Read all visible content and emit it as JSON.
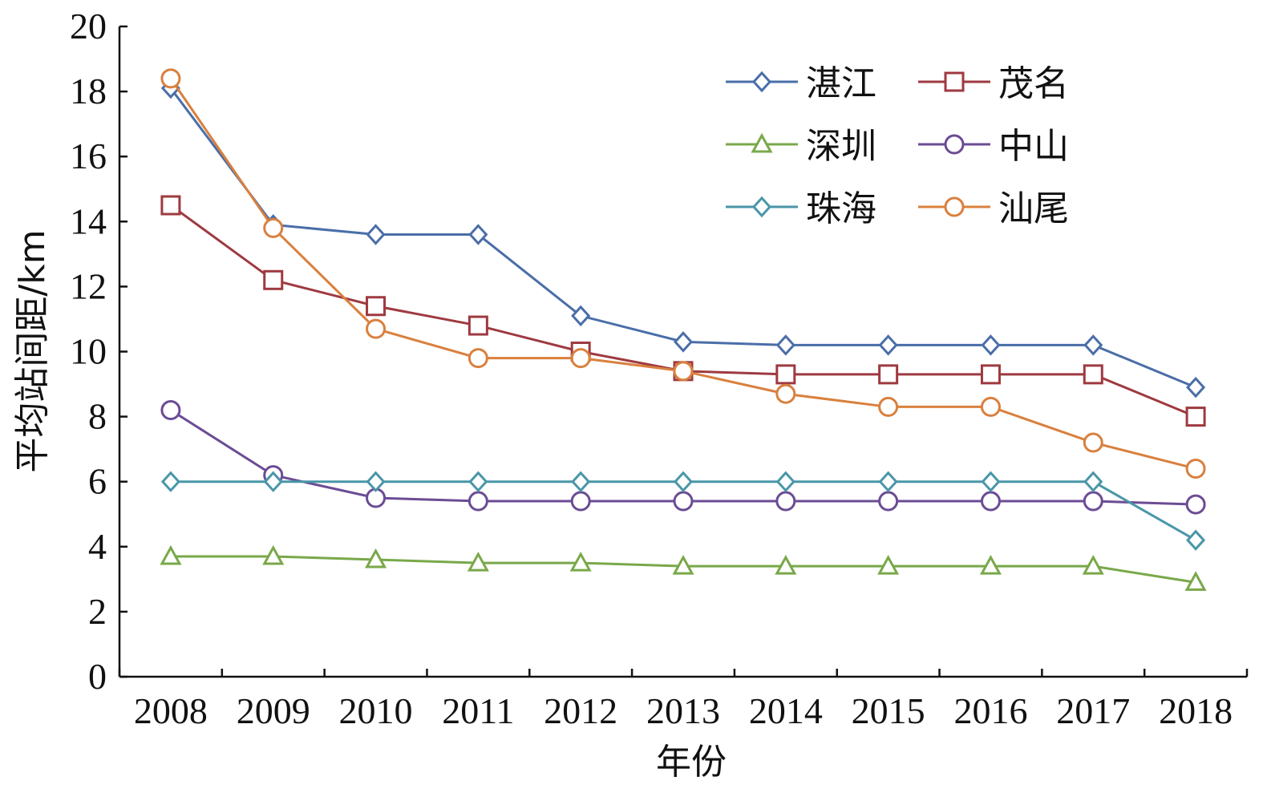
{
  "chart_data": {
    "type": "line",
    "title": "",
    "xlabel": "年份",
    "ylabel": "平均站间距/km",
    "ylim": [
      0,
      20
    ],
    "yticks": [
      "0",
      "2",
      "4",
      "6",
      "8",
      "10",
      "12",
      "14",
      "16",
      "18",
      "20"
    ],
    "categories": [
      "2008",
      "2009",
      "2010",
      "2011",
      "2012",
      "2013",
      "2014",
      "2015",
      "2016",
      "2017",
      "2018"
    ],
    "grid": false,
    "legend": "top-right",
    "series": [
      {
        "name": "湛江",
        "color": "#4a6ea8",
        "marker": "diamond",
        "values": [
          18.1,
          13.9,
          13.6,
          13.6,
          11.1,
          10.3,
          10.2,
          10.2,
          10.2,
          10.2,
          8.9
        ]
      },
      {
        "name": "茂名",
        "color": "#9e3a40",
        "marker": "square",
        "values": [
          14.5,
          12.2,
          11.4,
          10.8,
          10.0,
          9.4,
          9.3,
          9.3,
          9.3,
          9.3,
          8.0
        ]
      },
      {
        "name": "深圳",
        "color": "#79a84a",
        "marker": "triangle",
        "values": [
          3.7,
          3.7,
          3.6,
          3.5,
          3.5,
          3.4,
          3.4,
          3.4,
          3.4,
          3.4,
          2.9
        ]
      },
      {
        "name": "中山",
        "color": "#6b4c94",
        "marker": "circle",
        "values": [
          8.2,
          6.2,
          5.5,
          5.4,
          5.4,
          5.4,
          5.4,
          5.4,
          5.4,
          5.4,
          5.3
        ]
      },
      {
        "name": "珠海",
        "color": "#4996a8",
        "marker": "diamond",
        "values": [
          6.0,
          6.0,
          6.0,
          6.0,
          6.0,
          6.0,
          6.0,
          6.0,
          6.0,
          6.0,
          4.2
        ]
      },
      {
        "name": "汕尾",
        "color": "#d9803e",
        "marker": "circle",
        "values": [
          18.4,
          13.8,
          10.7,
          9.8,
          9.8,
          9.4,
          8.7,
          8.3,
          8.3,
          7.2,
          6.4
        ]
      }
    ]
  }
}
